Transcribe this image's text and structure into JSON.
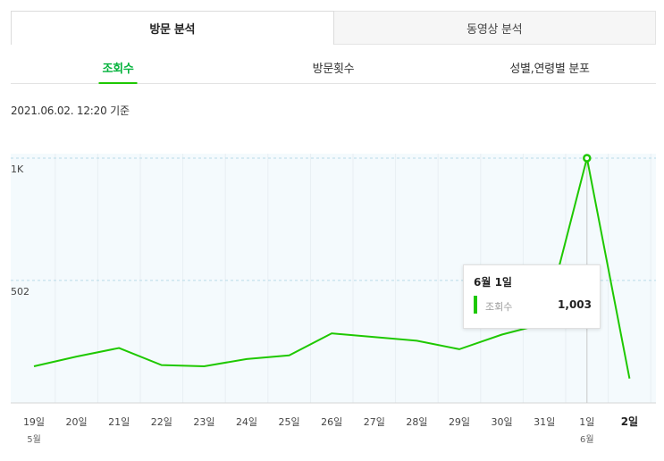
{
  "tabs": [
    {
      "label": "방문 분석",
      "active": true
    },
    {
      "label": "동영상 분석",
      "active": false
    }
  ],
  "subtabs": [
    {
      "label": "조회수",
      "active": true
    },
    {
      "label": "방문횟수",
      "active": false
    },
    {
      "label": "성별,연령별 분포",
      "active": false
    }
  ],
  "timestamp": "2021.06.02. 12:20 기준",
  "colors": {
    "accent": "#1ec800",
    "accent_text": "#03b23b",
    "plot_background": "#f4fafd"
  },
  "tooltip": {
    "title": "6월 1일",
    "series_label": "조회수",
    "value": "1,003"
  },
  "chart_data": {
    "type": "line",
    "title": "",
    "xlabel": "",
    "ylabel": "",
    "x": [
      "19일",
      "20일",
      "21일",
      "22일",
      "23일",
      "24일",
      "25일",
      "26일",
      "27일",
      "28일",
      "29일",
      "30일",
      "31일",
      "1일",
      "2일"
    ],
    "x_month_labels": [
      {
        "index": 0,
        "label": "5월"
      },
      {
        "index": 13,
        "label": "6월"
      }
    ],
    "highlighted_x": "2일",
    "series": [
      {
        "name": "조회수",
        "values": [
          150,
          190,
          225,
          155,
          150,
          180,
          195,
          285,
          270,
          255,
          220,
          280,
          325,
          1003,
          100
        ]
      }
    ],
    "yticks": [
      {
        "value": 502,
        "label": "502"
      },
      {
        "value": 1003,
        "label": "1K"
      }
    ],
    "ylim": [
      0,
      1003
    ],
    "active_index": 13,
    "grid": true,
    "legend": "none"
  }
}
